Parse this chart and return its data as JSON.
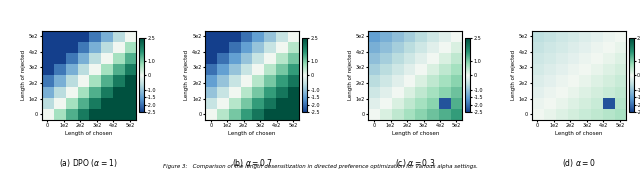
{
  "titles": [
    "(a) DPO ($\\alpha = 1$)",
    "(b) $\\alpha = 0.7$",
    "(c) $\\alpha = 0.3$",
    "(d) $\\alpha = 0$"
  ],
  "xlabel": "Length of chosen",
  "ylabel": "Length of rejected",
  "x_tick_labels": [
    "0",
    "1e2",
    "2e2",
    "3e2",
    "4e2",
    "5e2"
  ],
  "y_tick_labels": [
    "0",
    "1e2",
    "2e2",
    "3e2",
    "4e2",
    "5e2"
  ],
  "vmin": -2.5,
  "vmax": 2.5,
  "figsize": [
    6.4,
    1.71
  ],
  "dpi": 100,
  "figure_caption": "Figure 3:  Comparison of the length desensitization in directed preference optimization for various alpha settings.",
  "n": 8,
  "strengths": [
    4.5,
    3.5,
    1.5,
    0.6
  ],
  "dark_spot_row": 6,
  "dark_spot_col": 6
}
